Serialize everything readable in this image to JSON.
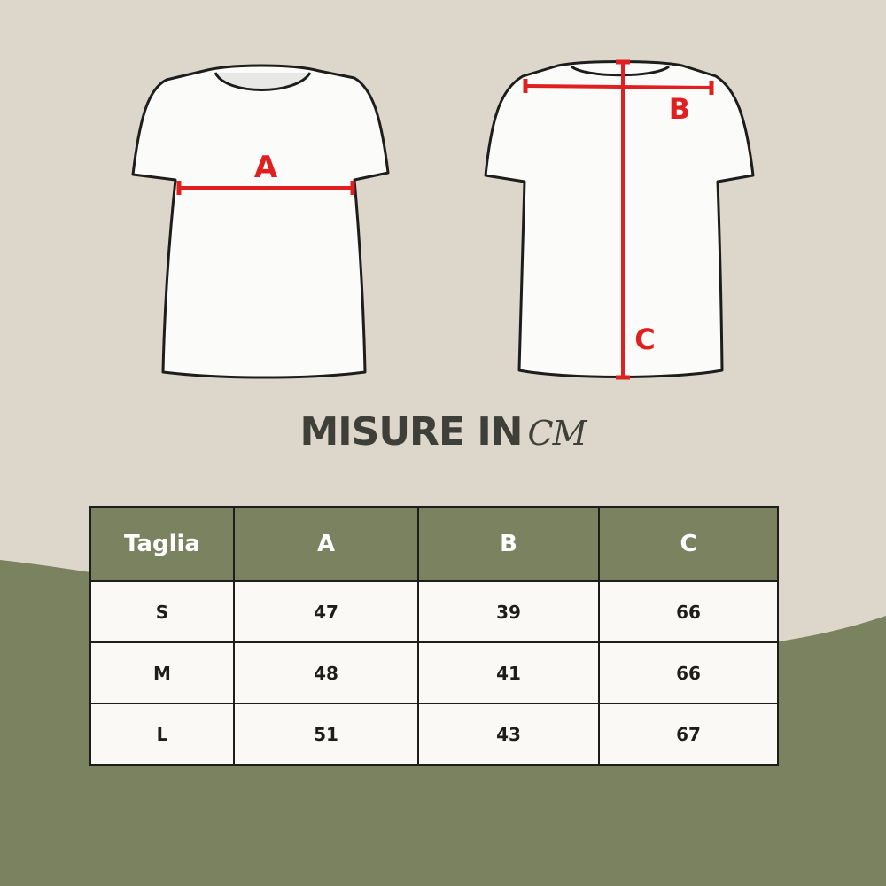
{
  "colors": {
    "background": "#dcd6cb",
    "accent_green": "#7a8260",
    "measure_red": "#e02020",
    "text_dark": "#3f3f3a"
  },
  "front_shirt": {
    "label": "A"
  },
  "back_shirt": {
    "label_b": "B",
    "label_c": "C"
  },
  "title": {
    "text": "MISURE IN",
    "unit": "CM"
  },
  "table": {
    "headers": [
      "Taglia",
      "A",
      "B",
      "C"
    ],
    "rows": [
      [
        "S",
        "47",
        "39",
        "66"
      ],
      [
        "M",
        "48",
        "41",
        "66"
      ],
      [
        "L",
        "51",
        "43",
        "67"
      ]
    ]
  }
}
